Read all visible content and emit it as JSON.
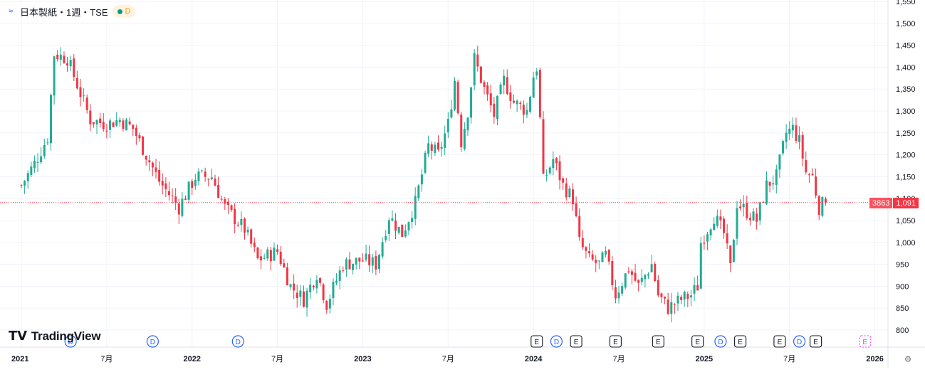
{
  "header": {
    "symbol_title": "日本製紙・1週・TSE",
    "status_badge": "D",
    "symbol_icon": "chart-symbol-icon"
  },
  "logo": {
    "text": "TradingView",
    "mark": "TV"
  },
  "price_label": {
    "countdown": "3863",
    "last_price": "1,091"
  },
  "colors": {
    "up": "#22ab94",
    "down": "#f23645",
    "grid": "#f0f3fa",
    "axis_text": "#131722"
  },
  "chart_data": {
    "type": "candlestick",
    "title": "",
    "xlabel": "",
    "ylabel": "",
    "ylim": [
      800,
      1550
    ],
    "y_ticks": [
      800,
      850,
      900,
      950,
      1000,
      1050,
      1100,
      1150,
      1200,
      1250,
      1300,
      1350,
      1400,
      1450,
      1500,
      1550
    ],
    "y_tick_labels": [
      "800",
      "850",
      "900",
      "950",
      "1,000",
      "1,050",
      "1,100",
      "1,150",
      "1,200",
      "1,250",
      "1,300",
      "1,350",
      "1,400",
      "1,450",
      "1,500",
      "1,550"
    ],
    "x_ticks": [
      {
        "label": "2021",
        "week": 0
      },
      {
        "label": "7月",
        "week": 26
      },
      {
        "label": "2022",
        "week": 52
      },
      {
        "label": "7月",
        "week": 78
      },
      {
        "label": "2023",
        "week": 104
      },
      {
        "label": "7月",
        "week": 130
      },
      {
        "label": "2024",
        "week": 156
      },
      {
        "label": "7月",
        "week": 182
      },
      {
        "label": "2025",
        "week": 208
      },
      {
        "label": "7月",
        "week": 234
      },
      {
        "label": "2026",
        "week": 260
      }
    ],
    "last_price": 1091,
    "events": [
      {
        "type": "D",
        "week": 15
      },
      {
        "type": "D",
        "week": 40
      },
      {
        "type": "D",
        "week": 66
      },
      {
        "type": "E",
        "week": 157
      },
      {
        "type": "D",
        "week": 163
      },
      {
        "type": "E",
        "week": 169
      },
      {
        "type": "E",
        "week": 181
      },
      {
        "type": "E",
        "week": 194
      },
      {
        "type": "E",
        "week": 206
      },
      {
        "type": "D",
        "week": 213
      },
      {
        "type": "E",
        "week": 219
      },
      {
        "type": "E",
        "week": 231
      },
      {
        "type": "D",
        "week": 237
      },
      {
        "type": "E",
        "week": 242
      },
      {
        "type": "E",
        "week": 257
      }
    ],
    "anchors": [
      [
        0,
        1130
      ],
      [
        4,
        1180
      ],
      [
        8,
        1240
      ],
      [
        10,
        1430
      ],
      [
        14,
        1420
      ],
      [
        18,
        1340
      ],
      [
        21,
        1280
      ],
      [
        26,
        1270
      ],
      [
        30,
        1280
      ],
      [
        34,
        1260
      ],
      [
        38,
        1200
      ],
      [
        42,
        1140
      ],
      [
        48,
        1080
      ],
      [
        53,
        1150
      ],
      [
        58,
        1150
      ],
      [
        62,
        1080
      ],
      [
        68,
        1030
      ],
      [
        72,
        960
      ],
      [
        78,
        980
      ],
      [
        82,
        900
      ],
      [
        86,
        870
      ],
      [
        90,
        930
      ],
      [
        93,
        860
      ],
      [
        98,
        950
      ],
      [
        104,
        960
      ],
      [
        108,
        950
      ],
      [
        112,
        1060
      ],
      [
        116,
        1020
      ],
      [
        120,
        1090
      ],
      [
        124,
        1220
      ],
      [
        127,
        1200
      ],
      [
        130,
        1270
      ],
      [
        132,
        1370
      ],
      [
        134,
        1230
      ],
      [
        136,
        1300
      ],
      [
        138,
        1420
      ],
      [
        141,
        1350
      ],
      [
        144,
        1290
      ],
      [
        147,
        1370
      ],
      [
        150,
        1320
      ],
      [
        154,
        1300
      ],
      [
        156,
        1380
      ],
      [
        157,
        1400
      ],
      [
        158,
        1280
      ],
      [
        159,
        1140
      ],
      [
        162,
        1190
      ],
      [
        165,
        1130
      ],
      [
        168,
        1100
      ],
      [
        170,
        1000
      ],
      [
        173,
        960
      ],
      [
        176,
        950
      ],
      [
        178,
        970
      ],
      [
        181,
        880
      ],
      [
        185,
        940
      ],
      [
        188,
        900
      ],
      [
        192,
        950
      ],
      [
        194,
        880
      ],
      [
        197,
        850
      ],
      [
        201,
        870
      ],
      [
        204,
        880
      ],
      [
        206,
        900
      ],
      [
        207,
        1000
      ],
      [
        211,
        1060
      ],
      [
        214,
        1020
      ],
      [
        216,
        940
      ],
      [
        218,
        1090
      ],
      [
        221,
        1070
      ],
      [
        224,
        1050
      ],
      [
        227,
        1130
      ],
      [
        230,
        1150
      ],
      [
        233,
        1250
      ],
      [
        235,
        1260
      ],
      [
        237,
        1230
      ],
      [
        239,
        1160
      ],
      [
        241,
        1150
      ],
      [
        243,
        1080
      ],
      [
        245,
        1093
      ]
    ]
  }
}
